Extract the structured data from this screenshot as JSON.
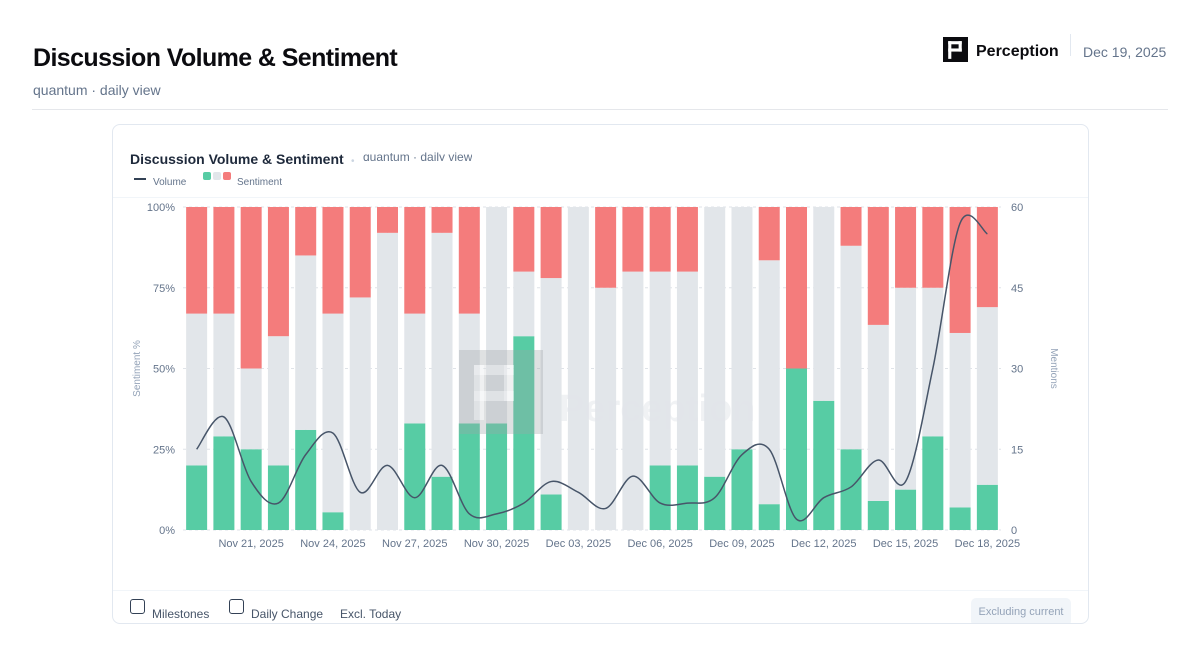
{
  "header": {
    "title": "Discussion Volume & Sentiment",
    "subtitle": "quantum · daily view",
    "brand": "Perception",
    "date": "Dec 19, 2025"
  },
  "card": {
    "title": "Discussion Volume & Sentiment",
    "subtitle": "quantum · daily view",
    "legend": {
      "volume": "Volume",
      "sentiment": "Sentiment"
    }
  },
  "watermark": "Perception",
  "footer": {
    "milestones": "Milestones",
    "daily_change": "Daily Change",
    "excl_today": "Excl. Today",
    "excluding_current": "Excluding current"
  },
  "colors": {
    "positive": "#57cca4",
    "neutral": "#e2e6ea",
    "negative": "#f47c7c",
    "volume_line": "#475569"
  },
  "chart_data": {
    "type": "bar",
    "stacked": true,
    "dates": [
      "2025-11-19",
      "2025-11-20",
      "2025-11-21",
      "2025-11-22",
      "2025-11-23",
      "2025-11-24",
      "2025-11-25",
      "2025-11-26",
      "2025-11-27",
      "2025-11-28",
      "2025-11-29",
      "2025-11-30",
      "2025-12-01",
      "2025-12-02",
      "2025-12-03",
      "2025-12-04",
      "2025-12-05",
      "2025-12-06",
      "2025-12-07",
      "2025-12-08",
      "2025-12-09",
      "2025-12-10",
      "2025-12-11",
      "2025-12-12",
      "2025-12-13",
      "2025-12-14",
      "2025-12-15",
      "2025-12-16",
      "2025-12-17",
      "2025-12-18"
    ],
    "series": [
      {
        "name": "Positive",
        "values": [
          20,
          29,
          25,
          20,
          31,
          5.5,
          0,
          0,
          33,
          16.5,
          33,
          33,
          60,
          11,
          0,
          0,
          0,
          20,
          20,
          16.5,
          25,
          8,
          50,
          40,
          25,
          9,
          12.5,
          29,
          7,
          14
        ]
      },
      {
        "name": "Neutral",
        "values": [
          47,
          38,
          25,
          40,
          54,
          61.5,
          72,
          92,
          34,
          75.5,
          34,
          67,
          20,
          67,
          100,
          75,
          80,
          60,
          60,
          83.5,
          75,
          75.5,
          0,
          60,
          63,
          54.5,
          62.5,
          46,
          54,
          55
        ]
      },
      {
        "name": "Negative",
        "values": [
          33,
          33,
          50,
          40,
          15,
          33,
          28,
          8,
          33,
          8,
          33,
          0,
          20,
          22,
          0,
          25,
          20,
          20,
          20,
          0,
          0,
          16.5,
          50,
          0,
          12,
          36.5,
          25,
          25,
          39,
          31
        ]
      },
      {
        "name": "Volume",
        "values": [
          15,
          21,
          9,
          5,
          14,
          18,
          7,
          12,
          6,
          12,
          3,
          3,
          5,
          9,
          7,
          4,
          10,
          5,
          5,
          6,
          14,
          15,
          2,
          6,
          8,
          13,
          9,
          30,
          57,
          55
        ]
      }
    ],
    "x_tick_labels": [
      "Nov 21, 2025",
      "Nov 24, 2025",
      "Nov 27, 2025",
      "Nov 30, 2025",
      "Dec 03, 2025",
      "Dec 06, 2025",
      "Dec 09, 2025",
      "Dec 12, 2025",
      "Dec 15, 2025",
      "Dec 18, 2025"
    ],
    "x_tick_indices": [
      2,
      5,
      8,
      11,
      14,
      17,
      20,
      23,
      26,
      29
    ],
    "y_left": {
      "label": "Sentiment %",
      "range": [
        0,
        100
      ],
      "ticks": [
        "0%",
        "25%",
        "50%",
        "75%",
        "100%"
      ]
    },
    "y_right": {
      "label": "Mentions",
      "range": [
        0,
        60
      ],
      "ticks": [
        "0",
        "15",
        "30",
        "45",
        "60"
      ]
    },
    "grid": true
  }
}
